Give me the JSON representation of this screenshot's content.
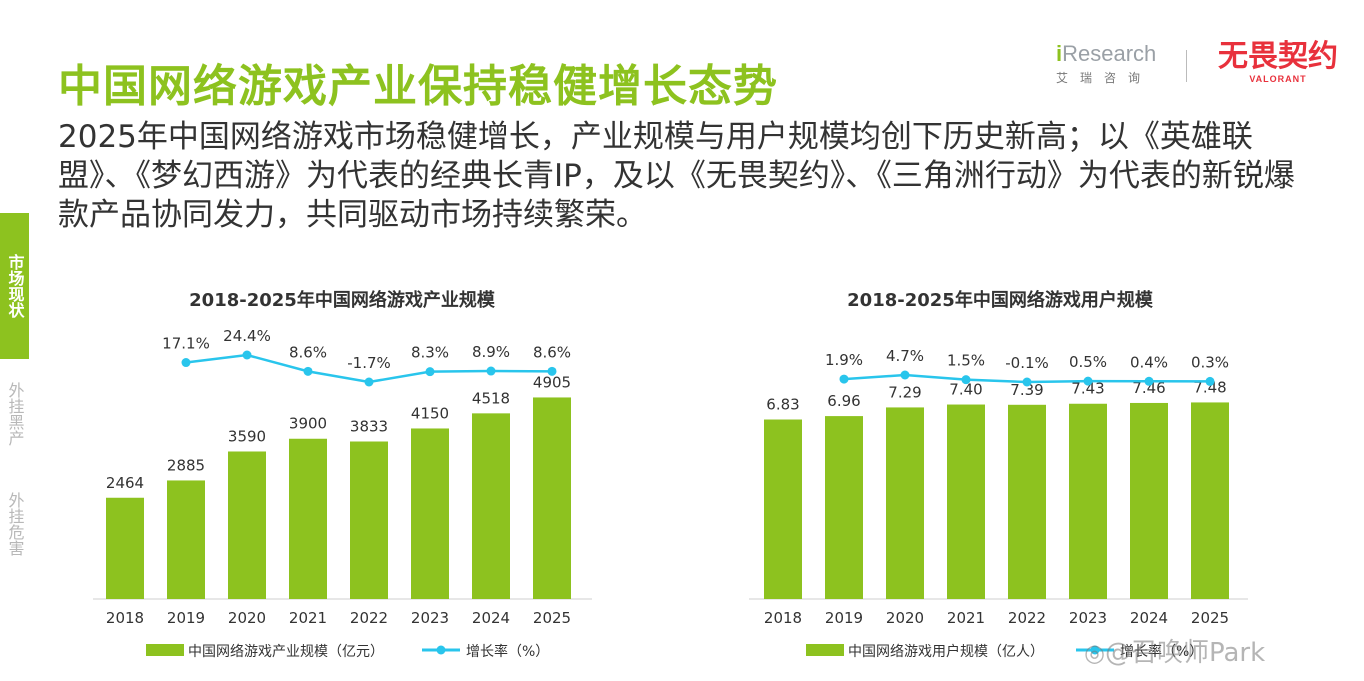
{
  "header": {
    "title": "中国网络游戏产业保持稳健增长态势",
    "subtitle": "2025年中国网络游戏市场稳健增长，产业规模与用户规模均创下历史新高；以《英雄联盟》、《梦幻西游》为代表的经典长青IP，及以《无畏契约》、《三角洲行动》为代表的新锐爆款产品协同发力，共同驱动市场持续繁荣。"
  },
  "logos": {
    "iresearch_i": "i",
    "iresearch_rest": "Research",
    "iresearch_cn": "艾瑞咨询",
    "valorant_cn": "无畏契约",
    "valorant_en": "VALORANT"
  },
  "side_nav": {
    "items": [
      {
        "label": "市场现状",
        "active": true
      },
      {
        "label": "外挂黑产",
        "active": false
      },
      {
        "label": "外挂危害",
        "active": false
      }
    ]
  },
  "watermark": {
    "icon": "weibo-icon",
    "text": "@召唤师Park"
  },
  "colors": {
    "accent": "#8dc21f",
    "bar": "#8dc21f",
    "line": "#29c5ec"
  },
  "chart_data": [
    {
      "type": "bar",
      "title": "2018-2025年中国网络游戏产业规模",
      "categories": [
        "2018",
        "2019",
        "2020",
        "2021",
        "2022",
        "2023",
        "2024",
        "2025"
      ],
      "series": [
        {
          "name": "中国网络游戏产业规模（亿元）",
          "type": "bar",
          "values": [
            2464,
            2885,
            3590,
            3900,
            3833,
            4150,
            4518,
            4905
          ],
          "labels": [
            "2464",
            "2885",
            "3590",
            "3900",
            "3833",
            "4150",
            "4518",
            "4905"
          ]
        },
        {
          "name": "增长率（%）",
          "type": "line",
          "values": [
            null,
            17.1,
            24.4,
            8.6,
            -1.7,
            8.3,
            8.9,
            8.6
          ],
          "labels": [
            "",
            "17.1%",
            "24.4%",
            "8.6%",
            "-1.7%",
            "8.3%",
            "8.9%",
            "8.6%"
          ]
        }
      ],
      "ylim": [
        0,
        5500
      ],
      "xlabel": "",
      "ylabel": ""
    },
    {
      "type": "bar",
      "title": "2018-2025年中国网络游戏用户规模",
      "categories": [
        "2018",
        "2019",
        "2020",
        "2021",
        "2022",
        "2023",
        "2024",
        "2025"
      ],
      "series": [
        {
          "name": "中国网络游戏用户规模（亿人）",
          "type": "bar",
          "values": [
            6.83,
            6.96,
            7.29,
            7.4,
            7.39,
            7.43,
            7.46,
            7.48
          ],
          "labels": [
            "6.83",
            "6.96",
            "7.29",
            "7.40",
            "7.39",
            "7.43",
            "7.46",
            "7.48"
          ]
        },
        {
          "name": "增长率（%）",
          "type": "line",
          "values": [
            null,
            1.9,
            4.7,
            1.5,
            -0.1,
            0.5,
            0.4,
            0.3
          ],
          "labels": [
            "",
            "1.9%",
            "4.7%",
            "1.5%",
            "-0.1%",
            "0.5%",
            "0.4%",
            "0.3%"
          ]
        }
      ],
      "ylim": [
        0,
        8.6
      ],
      "xlabel": "",
      "ylabel": ""
    }
  ]
}
